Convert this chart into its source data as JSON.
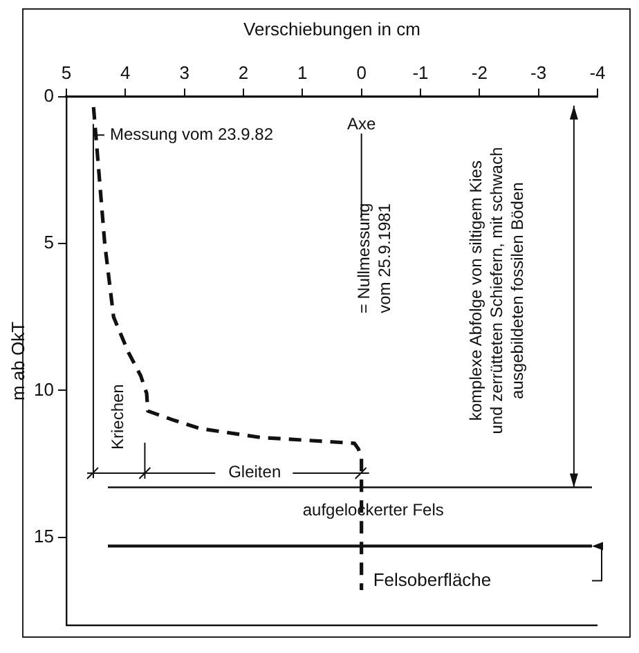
{
  "chart_data": {
    "type": "line",
    "xlabel": "Verschiebungen in cm",
    "ylabel": "m ab OkT",
    "xlim": [
      5,
      -4
    ],
    "xticks": [
      5,
      4,
      3,
      2,
      1,
      0,
      -1,
      -2,
      -3,
      -4
    ],
    "ylim": [
      18,
      0
    ],
    "yticks": [
      0,
      5,
      10,
      15
    ],
    "grid": false,
    "legend": false,
    "marker": "none",
    "line_style": "dashed",
    "series": [
      {
        "color": "#111111",
        "x": [
          4.54,
          4.35,
          4.2,
          3.95,
          3.74,
          3.64,
          3.62,
          3.2,
          2.73,
          1.71,
          0.5,
          0.12,
          0.05,
          0,
          0
        ],
        "values": [
          0.35,
          5,
          7.5,
          8.7,
          9.5,
          10.1,
          10.7,
          11.0,
          11.3,
          11.6,
          11.75,
          11.8,
          12.0,
          12.3,
          16.8
        ]
      }
    ],
    "ref_lines": [
      {
        "axis": "y",
        "value": 13.3,
        "color": "#111111"
      },
      {
        "axis": "y",
        "value": 15.3,
        "label": "Felsoberfläche",
        "color": "#111111"
      }
    ],
    "annotations": [
      {
        "text": "Messung vom 23.9.82",
        "x": 4.45,
        "y": 1.3
      },
      "Axe",
      "= Nullmessung vom 25.9.1981",
      "Kriechen",
      "Gleiten",
      "aufgelockerter Fels",
      "komplexe Abfolge von siltigem Kies und zerrütteten Schiefern, mit schwach ausgebildeten fossilen Böden"
    ]
  }
}
